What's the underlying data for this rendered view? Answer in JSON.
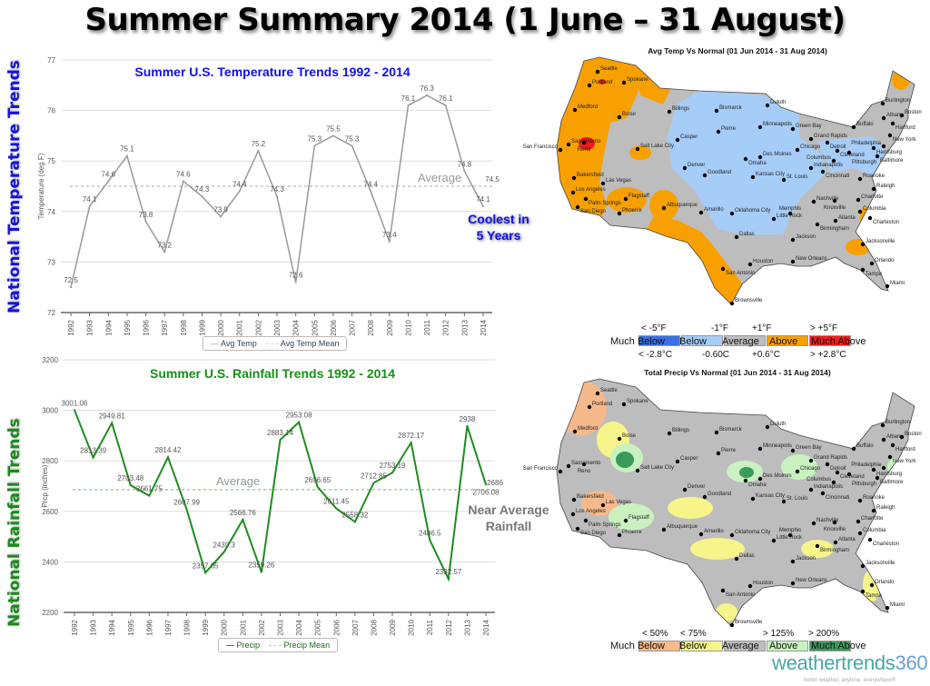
{
  "title": "Summer Summary 2014 (1 June – 31 August)",
  "side_titles": {
    "temp": "National Temperature Trends",
    "rain": "National Rainfall Trends"
  },
  "notes": {
    "coolest": "Coolest in 5 Years",
    "near_avg": "Near Average Rainfall"
  },
  "chart_data": [
    {
      "type": "line",
      "title": "Summer U.S. Temperature Trends 1992 - 2014",
      "xlabel": "",
      "ylabel": "Temperature (deg F)",
      "ylim": [
        72,
        77
      ],
      "yticks": [
        72,
        73,
        74,
        75,
        76,
        77
      ],
      "categories": [
        "1992",
        "1993",
        "1994",
        "1995",
        "1996",
        "1997",
        "1998",
        "1999",
        "2000",
        "2001",
        "2002",
        "2003",
        "2004",
        "2005",
        "2006",
        "2007",
        "2008",
        "2009",
        "2010",
        "2011",
        "2012",
        "2013",
        "2014"
      ],
      "series": [
        {
          "name": "Avg Temp",
          "color": "#999999",
          "values": [
            72.5,
            74.1,
            74.6,
            75.1,
            73.8,
            73.2,
            74.6,
            74.3,
            73.9,
            74.4,
            75.2,
            74.3,
            72.6,
            75.3,
            75.5,
            75.3,
            74.4,
            73.4,
            76.1,
            76.3,
            76.1,
            74.8,
            74.1
          ]
        },
        {
          "name": "Avg Temp Mean",
          "color": "#aaaaaa",
          "dashed": true,
          "value": 74.5,
          "label": "74.5"
        }
      ],
      "annotation": "Average",
      "legend": "bottom"
    },
    {
      "type": "line",
      "title": "Summer U.S. Rainfall Trends 1992 - 2014",
      "xlabel": "",
      "ylabel": "Prcp (inches)",
      "ylim": [
        2200,
        3200
      ],
      "yticks": [
        2200,
        2400,
        2600,
        2800,
        3000,
        3200
      ],
      "categories": [
        "1992",
        "1993",
        "1994",
        "1995",
        "1996",
        "1997",
        "1998",
        "1999",
        "2000",
        "2001",
        "2002",
        "2003",
        "2004",
        "2005",
        "2006",
        "2007",
        "2008",
        "2009",
        "2010",
        "2011",
        "2012",
        "2013",
        "2014"
      ],
      "series": [
        {
          "name": "Precip",
          "color": "#1e8c1e",
          "values": [
            3001.06,
            2813.39,
            2949.81,
            2703.48,
            2661.75,
            2814.42,
            2607.99,
            2357.05,
            2439.3,
            2566.76,
            2359.26,
            2883.14,
            2953.08,
            2696.65,
            2611.45,
            2558.32,
            2712.85,
            2753.19,
            2872.17,
            2486.5,
            2332.57,
            2938,
            2706.08
          ]
        },
        {
          "name": "Precip Mean",
          "color": "#66bb66",
          "dashed": true,
          "value": 2686,
          "label": "2686"
        }
      ],
      "annotation": "Average",
      "legend": "bottom"
    }
  ],
  "maps": {
    "temp": {
      "title": "Avg Temp Vs Normal (01 Jun 2014 - 31 Aug 2014)",
      "legend": {
        "top": [
          "< -5°F",
          "-1°F",
          "+1°F",
          "> +5°F"
        ],
        "cats": [
          "Much Below",
          "Below",
          "Average",
          "Above",
          "Much Above"
        ],
        "bottom": [
          "< -2.8°C",
          "-0.60C",
          "+0.6°C",
          "> +2.8°C"
        ],
        "colors": [
          "#3b6fe6",
          "#a6cdf8",
          "#bdbdbd",
          "#f7a000",
          "#ee1c1c"
        ]
      }
    },
    "precip": {
      "title": "Total Precip Vs Normal (01 Jun 2014 - 31 Aug 2014)",
      "legend": {
        "top": [
          "< 50%",
          "< 75%",
          "> 125%",
          "> 200%"
        ],
        "cats": [
          "Much Below",
          "Below",
          "Average",
          "Above",
          "Much Above"
        ],
        "colors": [
          "#f6b98c",
          "#f7f48a",
          "#bdbdbd",
          "#c9f2c0",
          "#3a9a5a"
        ]
      }
    },
    "cities": [
      "Seattle",
      "Portland",
      "Spokane",
      "Medford",
      "Boise",
      "Billings",
      "Bismarck",
      "Duluth",
      "Burlington",
      "Boston",
      "Albany",
      "Hartford",
      "Buffalo",
      "Green Bay",
      "Minneapolis",
      "Pierre",
      "Casper",
      "Grand Rapids",
      "New York",
      "Sacramento",
      "Reno",
      "San Francisco",
      "Salt Lake City",
      "Detroit",
      "Harrisburg",
      "Philadelphia",
      "Des Moines",
      "Omaha",
      "Chicago",
      "Cleveland",
      "Pittsburgh",
      "Baltimore",
      "Indianapolis",
      "Columbus",
      "Denver",
      "Goodland",
      "Kansas City",
      "St. Louis",
      "Cincinnati",
      "Roanoke",
      "Bakersfield",
      "Las Vegas",
      "Raleigh",
      "Los Angeles",
      "Palm Springs",
      "Flagstaff",
      "Nashville",
      "Knoxville",
      "Charlotte",
      "San Diego",
      "Albuquerque",
      "Amarillo",
      "Oklahoma City",
      "Little Rock",
      "Memphis",
      "Columbia",
      "Atlanta",
      "Phoenix",
      "Charleston",
      "Birmingham",
      "Dallas",
      "Jackson",
      "Jacksonville",
      "Houston",
      "San Antonio",
      "New Orleans",
      "Orlando",
      "Tampa",
      "Miami",
      "Brownsville"
    ]
  },
  "logo": {
    "a": "weathertrends",
    "b": "360",
    "tagline": "better weather, anytime, everywhere®"
  }
}
